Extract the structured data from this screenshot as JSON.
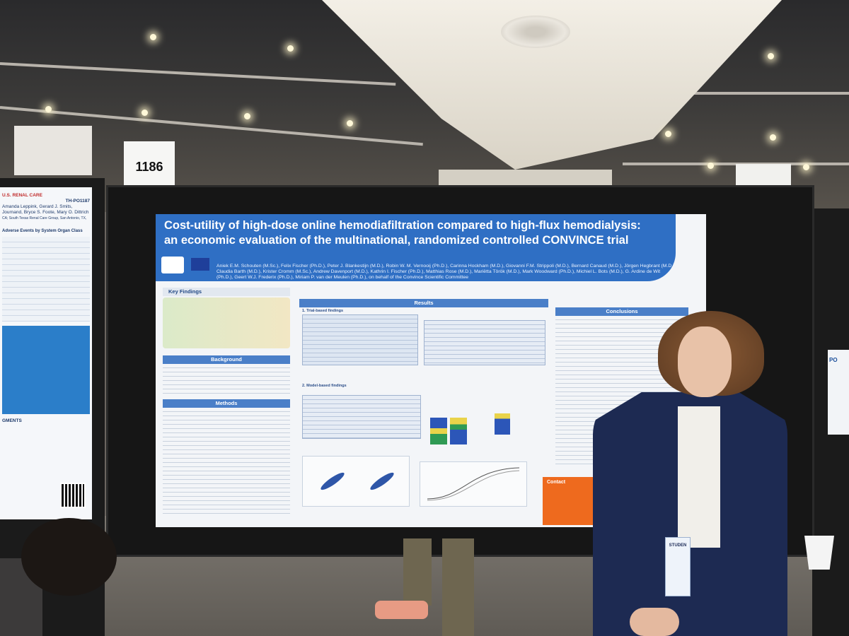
{
  "scene": {
    "board_number": "1186"
  },
  "left_poster": {
    "brand": "U.S. RENAL CARE",
    "poster_id": "TH-PO1187",
    "authors_line1": "Amanda Leppink, Gerard J. Smits,",
    "authors_line2": "Journand, Bryce S. Foote, Mary O. Dittrich",
    "affiliation": "CA; South Texas Renal Care Group, San Antonio, TX,",
    "section_heading": "Adverse Events by System Organ Class",
    "section_acknowledgments": "GMENTS"
  },
  "poster": {
    "title_line1": "Cost-utility of high-dose online hemodiafiltration compared to high-flux hemodialysis:",
    "title_line2": "an economic evaluation of the multinational, randomized controlled CONVINCE trial",
    "authors": "Aniek E.M. Schouten (M.Sc.), Felix Fischer (Ph.D.), Peter J. Blankestijn (M.D.), Robin W. M. Vernooij (Ph.D.), Carinna Hockham (M.D.), Giovanni F.M. Strippoli (M.D.), Bernard Canaud (M.D.), Jörgen Hegbrant (M.D.), Claudia Barth (M.D.), Krister Cromm (M.Sc.), Andrew Davenport (M.D.), Kathrin I. Fischer (Ph.D.), Matthias Rose (M.D.), Mariëtta Török (M.D.), Mark Woodward (Ph.D.), Michiel L. Bots (M.D.), G. Ardine de Wit (Ph.D.), Geert W.J. Frederix (Ph.D.), Miriam P. van der Meulen (Ph.D.), on behalf of the Convince Scientific Committee",
    "sections": {
      "key_findings": "Key Findings",
      "background": "Background",
      "methods": "Methods",
      "results": "Results",
      "conclusions": "Conclusions",
      "contact": "Contact"
    },
    "results_subheads": {
      "trial": "1. Trial-based findings",
      "model": "2. Model-based findings"
    }
  },
  "attendee": {
    "badge_label": "STUDEN"
  },
  "right_poster": {
    "label": "PO"
  }
}
